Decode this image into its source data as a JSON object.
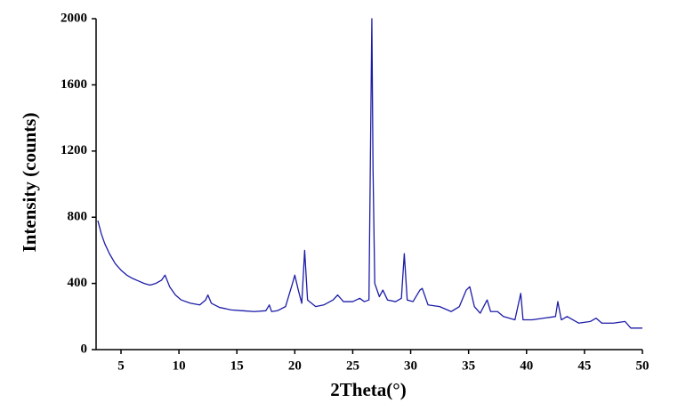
{
  "chart_data": {
    "type": "line",
    "x_label": "2Theta(°)",
    "y_label": "Intensity (counts)",
    "color": "#1c1ca8",
    "xlim": [
      2.85,
      50
    ],
    "ylim": [
      0,
      2000
    ],
    "xticks": [
      5,
      10,
      15,
      20,
      25,
      30,
      35,
      40,
      45,
      50
    ],
    "yticks": [
      0,
      400,
      800,
      1200,
      1600,
      2000
    ],
    "x": [
      3.0,
      3.3,
      3.6,
      4,
      4.5,
      5,
      5.5,
      6,
      6.5,
      7,
      7.5,
      8,
      8.5,
      8.8,
      9.2,
      9.7,
      10.2,
      11,
      11.8,
      12.3,
      12.5,
      12.8,
      13.5,
      14.5,
      15.5,
      16.5,
      17.5,
      17.8,
      18,
      18.5,
      19.2,
      19.8,
      20,
      20.3,
      20.6,
      20.85,
      21.1,
      21.8,
      22.5,
      23.3,
      23.7,
      24.2,
      25,
      25.6,
      26,
      26.4,
      26.65,
      26.75,
      26.9,
      27.3,
      27.6,
      28,
      28.7,
      29.2,
      29.45,
      29.7,
      30.2,
      30.8,
      31,
      31.5,
      32.5,
      33.5,
      34.2,
      34.8,
      35.1,
      35.5,
      36,
      36.6,
      36.9,
      37.5,
      38,
      39,
      39.5,
      39.7,
      40.5,
      41.5,
      42.5,
      42.7,
      43,
      43.5,
      44.5,
      45.5,
      46,
      46.5,
      47.5,
      48.5,
      49,
      50
    ],
    "values": [
      780,
      700,
      640,
      580,
      520,
      480,
      450,
      430,
      415,
      400,
      390,
      400,
      420,
      450,
      380,
      330,
      300,
      280,
      270,
      300,
      330,
      280,
      255,
      240,
      235,
      230,
      235,
      270,
      230,
      235,
      260,
      400,
      450,
      360,
      280,
      600,
      300,
      260,
      270,
      300,
      330,
      290,
      290,
      310,
      290,
      300,
      2000,
      1100,
      400,
      320,
      360,
      300,
      290,
      310,
      580,
      300,
      290,
      360,
      370,
      270,
      260,
      230,
      260,
      360,
      380,
      260,
      220,
      300,
      230,
      230,
      200,
      180,
      340,
      180,
      180,
      190,
      200,
      290,
      180,
      200,
      160,
      170,
      190,
      160,
      160,
      170,
      130,
      130
    ]
  }
}
